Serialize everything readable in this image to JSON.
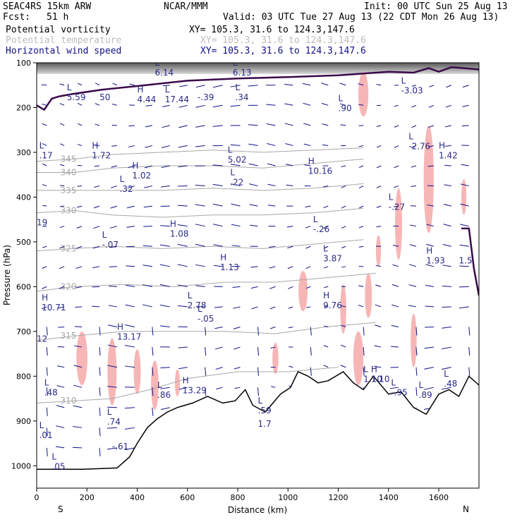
{
  "header": {
    "model": "SEAC4RS 15km ARW",
    "fcst_label": "Fcst:",
    "fcst_value": "51 h",
    "org": "NCAR/MMM",
    "init": "Init: 00 UTC Sun 25 Aug 13",
    "valid": "Valid: 03 UTC Tue 27 Aug 13 (22 CDT Mon 26 Aug 13)",
    "fields": [
      {
        "name": "Potential vorticity",
        "xy": "XY= 105.3, 31.6 to 124.3,147.6",
        "color": "#000000"
      },
      {
        "name": "Potential temperature",
        "xy": "XY= 105.3, 31.6 to 124.3,147.6",
        "color": "#bdbdbd"
      },
      {
        "name": "Horizontal wind speed",
        "xy": "XY= 105.3, 31.6 to 124.3,147.6",
        "color": "#101088"
      }
    ]
  },
  "colors": {
    "pv_contour": "#3a0a4a",
    "theta_contour": "#a8a8a8",
    "wind_vector": "#101088",
    "wind_shading": "#f7b6b6",
    "high_pv_shading": "#505050",
    "terrain": "#000000"
  },
  "chart_data": {
    "type": "cross-section",
    "xlabel": "Distance (km)",
    "ylabel": "Pressure (hPa)",
    "xlim": [
      0,
      1760
    ],
    "ylim": [
      1050,
      100
    ],
    "x_ticks": [
      "0",
      "200",
      "400",
      "600",
      "800",
      "1000",
      "1200",
      "1400",
      "1600"
    ],
    "y_ticks": [
      "100",
      "200",
      "300",
      "400",
      "500",
      "600",
      "700",
      "800",
      "900",
      "1000"
    ],
    "end_labels": {
      "left": "S",
      "right": "N"
    },
    "theta_contours": [
      {
        "label": "345",
        "points": [
          [
            0,
            320
          ],
          [
            150,
            315
          ],
          [
            300,
            305
          ],
          [
            500,
            300
          ],
          [
            700,
            295
          ],
          [
            900,
            300
          ],
          [
            1100,
            295
          ],
          [
            1300,
            290
          ]
        ]
      },
      {
        "label": "340",
        "points": [
          [
            0,
            345
          ],
          [
            150,
            345
          ],
          [
            300,
            335
          ],
          [
            500,
            330
          ],
          [
            700,
            330
          ],
          [
            900,
            335
          ],
          [
            1100,
            325
          ],
          [
            1300,
            315
          ]
        ]
      },
      {
        "label": "335",
        "points": [
          [
            0,
            385
          ],
          [
            150,
            385
          ],
          [
            300,
            385
          ],
          [
            500,
            385
          ],
          [
            700,
            380
          ],
          [
            900,
            385
          ],
          [
            1100,
            380
          ],
          [
            1300,
            370
          ]
        ]
      },
      {
        "label": "330",
        "points": [
          [
            0,
            435
          ],
          [
            150,
            430
          ],
          [
            300,
            440
          ],
          [
            500,
            445
          ],
          [
            700,
            440
          ],
          [
            900,
            440
          ],
          [
            1100,
            435
          ],
          [
            1300,
            425
          ]
        ]
      },
      {
        "label": "325",
        "points": [
          [
            0,
            520
          ],
          [
            150,
            515
          ],
          [
            300,
            510
          ],
          [
            500,
            515
          ],
          [
            700,
            510
          ],
          [
            900,
            515
          ],
          [
            1100,
            505
          ],
          [
            1300,
            495
          ]
        ]
      },
      {
        "label": "320",
        "points": [
          [
            0,
            610
          ],
          [
            150,
            600
          ],
          [
            350,
            595
          ],
          [
            550,
            600
          ],
          [
            750,
            590
          ],
          [
            950,
            590
          ],
          [
            1150,
            580
          ],
          [
            1350,
            570
          ]
        ]
      },
      {
        "label": "315",
        "points": [
          [
            0,
            720
          ],
          [
            150,
            710
          ],
          [
            350,
            700
          ],
          [
            550,
            700
          ],
          [
            750,
            700
          ],
          [
            950,
            705
          ],
          [
            1150,
            690
          ],
          [
            1350,
            680
          ]
        ]
      },
      {
        "label": "310",
        "points": [
          [
            0,
            860
          ],
          [
            150,
            855
          ],
          [
            300,
            850
          ],
          [
            450,
            830
          ],
          [
            600,
            805
          ],
          [
            800,
            790
          ],
          [
            1000,
            790
          ],
          [
            1200,
            780
          ]
        ]
      }
    ],
    "terrain": [
      [
        0,
        1008
      ],
      [
        180,
        1008
      ],
      [
        320,
        1005
      ],
      [
        370,
        980
      ],
      [
        400,
        950
      ],
      [
        440,
        915
      ],
      [
        480,
        895
      ],
      [
        520,
        880
      ],
      [
        560,
        870
      ],
      [
        620,
        860
      ],
      [
        680,
        845
      ],
      [
        740,
        860
      ],
      [
        790,
        855
      ],
      [
        830,
        830
      ],
      [
        860,
        865
      ],
      [
        910,
        880
      ],
      [
        940,
        860
      ],
      [
        970,
        840
      ],
      [
        1010,
        825
      ],
      [
        1040,
        790
      ],
      [
        1080,
        800
      ],
      [
        1120,
        815
      ],
      [
        1160,
        810
      ],
      [
        1220,
        790
      ],
      [
        1260,
        815
      ],
      [
        1300,
        830
      ],
      [
        1340,
        800
      ],
      [
        1400,
        840
      ],
      [
        1450,
        835
      ],
      [
        1500,
        870
      ],
      [
        1550,
        885
      ],
      [
        1600,
        840
      ],
      [
        1640,
        830
      ],
      [
        1680,
        845
      ],
      [
        1720,
        800
      ],
      [
        1760,
        820
      ]
    ],
    "pv_contour": [
      [
        0,
        195
      ],
      [
        30,
        205
      ],
      [
        60,
        180
      ],
      [
        90,
        175
      ],
      [
        140,
        170
      ],
      [
        260,
        160
      ],
      [
        400,
        152
      ],
      [
        600,
        140
      ],
      [
        800,
        135
      ],
      [
        1000,
        132
      ],
      [
        1200,
        128
      ],
      [
        1400,
        120
      ],
      [
        1500,
        122
      ],
      [
        1560,
        112
      ],
      [
        1600,
        120
      ],
      [
        1650,
        110
      ],
      [
        1700,
        112
      ],
      [
        1760,
        115
      ]
    ],
    "labels": [
      {
        "t": "L",
        "v": "6.14",
        "x": 470,
        "p": 125
      },
      {
        "t": "L",
        "v": "6.13",
        "x": 780,
        "p": 125
      },
      {
        "t": "L",
        "v": "5.59",
        "x": 120,
        "p": 180
      },
      {
        "t": "",
        "v": "50",
        "x": 250,
        "p": 180
      },
      {
        "t": "H",
        "v": "4.44",
        "x": 400,
        "p": 185
      },
      {
        "t": "L",
        "v": "17.44",
        "x": 510,
        "p": 185
      },
      {
        "t": "",
        "v": "-.39",
        "x": 640,
        "p": 180
      },
      {
        "t": "L",
        "v": ".34",
        "x": 790,
        "p": 180
      },
      {
        "t": "L",
        "v": ".90",
        "x": 1200,
        "p": 205
      },
      {
        "t": "L",
        "v": "-3.03",
        "x": 1450,
        "p": 165
      },
      {
        "t": "L",
        "v": ".17",
        "x": 10,
        "p": 310
      },
      {
        "t": "H",
        "v": "1.72",
        "x": 220,
        "p": 310
      },
      {
        "t": "L",
        "v": "5.02",
        "x": 760,
        "p": 320
      },
      {
        "t": "H",
        "v": "10.16",
        "x": 1080,
        "p": 345
      },
      {
        "t": "L",
        "v": "-2.76",
        "x": 1480,
        "p": 290
      },
      {
        "t": "H",
        "v": "1.42",
        "x": 1600,
        "p": 310
      },
      {
        "t": "H",
        "v": "1.02",
        "x": 380,
        "p": 355
      },
      {
        "t": "L",
        "v": ".32",
        "x": 330,
        "p": 385
      },
      {
        "t": "L",
        "v": ".22",
        "x": 770,
        "p": 370
      },
      {
        "t": "L",
        "v": "-.27",
        "x": 1400,
        "p": 425
      },
      {
        "t": "",
        "v": "19",
        "x": 0,
        "p": 460
      },
      {
        "t": "H",
        "v": "1.08",
        "x": 530,
        "p": 485
      },
      {
        "t": "L",
        "v": "-.07",
        "x": 260,
        "p": 510
      },
      {
        "t": "L",
        "v": "-.26",
        "x": 1100,
        "p": 475
      },
      {
        "t": "L",
        "v": "3.87",
        "x": 1140,
        "p": 540
      },
      {
        "t": "H",
        "v": "1.93",
        "x": 1550,
        "p": 545
      },
      {
        "t": "",
        "v": "1.5",
        "x": 1680,
        "p": 545
      },
      {
        "t": "H",
        "v": "1.13",
        "x": 730,
        "p": 560
      },
      {
        "t": "L",
        "v": "2.78",
        "x": 600,
        "p": 645
      },
      {
        "t": "L",
        "v": "-.05",
        "x": 640,
        "p": 675
      },
      {
        "t": "H",
        "v": "9.76",
        "x": 1140,
        "p": 645
      },
      {
        "t": "H",
        "v": "10.71",
        "x": 20,
        "p": 650
      },
      {
        "t": "",
        "v": "12",
        "x": 0,
        "p": 720
      },
      {
        "t": "H",
        "v": "13.17",
        "x": 320,
        "p": 715
      },
      {
        "t": "L",
        "v": ".48",
        "x": 30,
        "p": 840
      },
      {
        "t": "L",
        "v": ".86",
        "x": 480,
        "p": 845
      },
      {
        "t": "H",
        "v": "13.29",
        "x": 580,
        "p": 835
      },
      {
        "t": "L",
        "v": "1.10",
        "x": 1300,
        "p": 810
      },
      {
        "t": "H",
        "v": "1.10",
        "x": 1330,
        "p": 810
      },
      {
        "t": "L",
        "v": "-.95",
        "x": 1410,
        "p": 840
      },
      {
        "t": "L",
        "v": ".89",
        "x": 1520,
        "p": 845
      },
      {
        "t": "L",
        "v": ".48",
        "x": 1620,
        "p": 820
      },
      {
        "t": "L",
        "v": ".59",
        "x": 880,
        "p": 880
      },
      {
        "t": "",
        "v": "1.7",
        "x": 880,
        "p": 910
      },
      {
        "t": "L",
        "v": ".74",
        "x": 280,
        "p": 905
      },
      {
        "t": "L",
        "v": ".01",
        "x": 10,
        "p": 935
      },
      {
        "t": "",
        "v": "-.61",
        "x": 300,
        "p": 960
      },
      {
        "t": "L",
        "v": ".05",
        "x": 60,
        "p": 1005
      }
    ]
  }
}
